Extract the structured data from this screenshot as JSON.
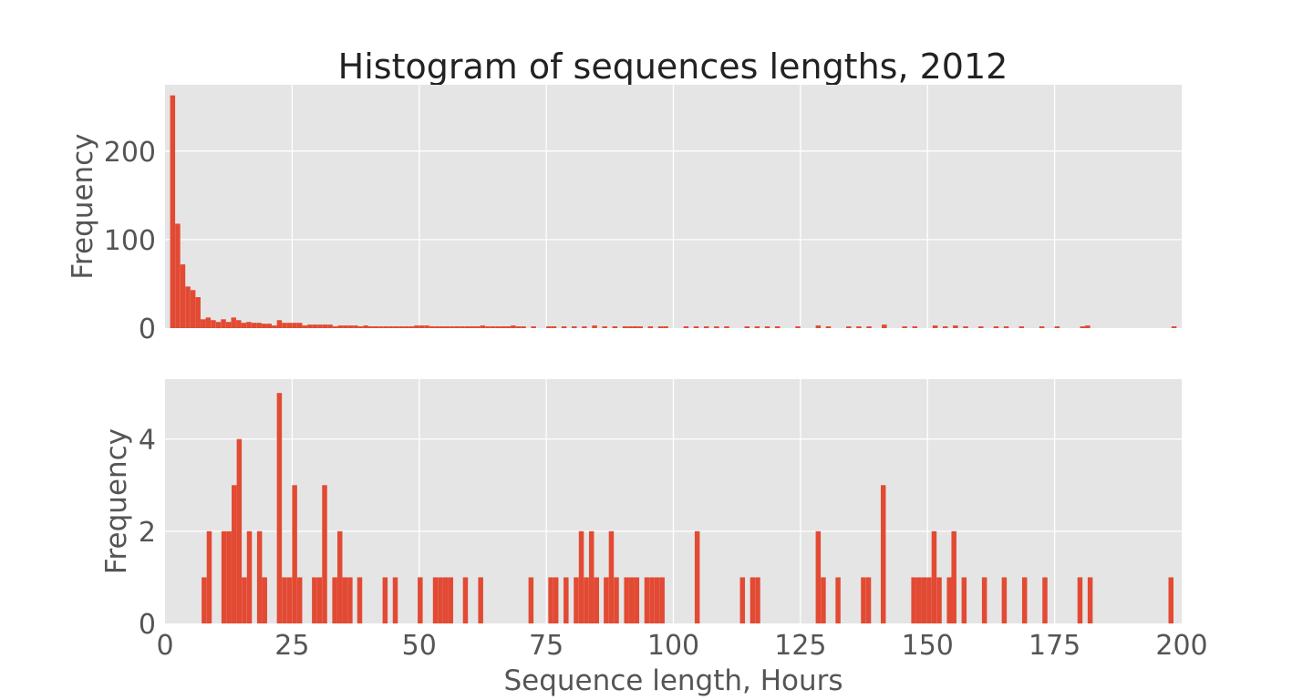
{
  "title": "Histogram of sequences lengths, 2012",
  "colors": {
    "bar": "#E24A33",
    "panel": "#E5E5E5",
    "grid": "#FFFFFF"
  },
  "chart_data": [
    {
      "type": "bar",
      "panel": "top",
      "ylabel": "Frequency",
      "xlabel": "",
      "xlim": [
        0,
        200
      ],
      "ylim": [
        0,
        275
      ],
      "yticks": [
        "0",
        "100",
        "200"
      ],
      "ytick_values": [
        0,
        100,
        200
      ],
      "xticks_shown": false,
      "grid": true,
      "bars": [
        [
          1,
          263
        ],
        [
          2,
          118
        ],
        [
          3,
          72
        ],
        [
          4,
          47
        ],
        [
          5,
          43
        ],
        [
          6,
          35
        ],
        [
          7,
          10
        ],
        [
          8,
          12
        ],
        [
          9,
          9
        ],
        [
          10,
          7
        ],
        [
          11,
          10
        ],
        [
          12,
          7
        ],
        [
          13,
          12
        ],
        [
          14,
          9
        ],
        [
          15,
          6
        ],
        [
          16,
          7
        ],
        [
          17,
          6
        ],
        [
          18,
          6
        ],
        [
          19,
          5
        ],
        [
          20,
          5
        ],
        [
          21,
          3
        ],
        [
          22,
          9
        ],
        [
          23,
          6
        ],
        [
          24,
          6
        ],
        [
          25,
          6
        ],
        [
          26,
          6
        ],
        [
          27,
          3
        ],
        [
          28,
          4
        ],
        [
          29,
          4
        ],
        [
          30,
          4
        ],
        [
          31,
          4
        ],
        [
          32,
          4
        ],
        [
          33,
          2
        ],
        [
          34,
          3
        ],
        [
          35,
          3
        ],
        [
          36,
          3
        ],
        [
          37,
          3
        ],
        [
          38,
          2
        ],
        [
          39,
          3
        ],
        [
          40,
          2
        ],
        [
          41,
          2
        ],
        [
          42,
          2
        ],
        [
          43,
          2
        ],
        [
          44,
          2
        ],
        [
          45,
          2
        ],
        [
          46,
          2
        ],
        [
          47,
          2
        ],
        [
          48,
          2
        ],
        [
          49,
          3
        ],
        [
          50,
          3
        ],
        [
          51,
          3
        ],
        [
          52,
          2
        ],
        [
          53,
          2
        ],
        [
          54,
          2
        ],
        [
          55,
          2
        ],
        [
          56,
          2
        ],
        [
          57,
          2
        ],
        [
          58,
          2
        ],
        [
          59,
          2
        ],
        [
          60,
          2
        ],
        [
          61,
          2
        ],
        [
          62,
          3
        ],
        [
          63,
          2
        ],
        [
          64,
          2
        ],
        [
          65,
          2
        ],
        [
          66,
          2
        ],
        [
          67,
          2
        ],
        [
          68,
          3
        ],
        [
          69,
          2
        ],
        [
          70,
          2
        ],
        [
          72,
          2
        ],
        [
          75,
          2
        ],
        [
          76,
          2
        ],
        [
          78,
          2
        ],
        [
          80,
          2
        ],
        [
          82,
          2
        ],
        [
          84,
          3
        ],
        [
          86,
          2
        ],
        [
          88,
          2
        ],
        [
          90,
          2
        ],
        [
          91,
          2
        ],
        [
          92,
          2
        ],
        [
          93,
          2
        ],
        [
          95,
          2
        ],
        [
          97,
          2
        ],
        [
          98,
          2
        ],
        [
          102,
          2
        ],
        [
          104,
          2
        ],
        [
          106,
          2
        ],
        [
          108,
          2
        ],
        [
          110,
          2
        ],
        [
          114,
          2
        ],
        [
          116,
          2
        ],
        [
          118,
          2
        ],
        [
          120,
          2
        ],
        [
          124,
          2
        ],
        [
          128,
          3
        ],
        [
          130,
          2
        ],
        [
          134,
          2
        ],
        [
          136,
          2
        ],
        [
          138,
          2
        ],
        [
          141,
          4
        ],
        [
          145,
          2
        ],
        [
          147,
          2
        ],
        [
          151,
          3
        ],
        [
          153,
          2
        ],
        [
          155,
          3
        ],
        [
          157,
          2
        ],
        [
          160,
          2
        ],
        [
          163,
          2
        ],
        [
          165,
          2
        ],
        [
          168,
          2
        ],
        [
          172,
          2
        ],
        [
          175,
          2
        ],
        [
          180,
          2
        ],
        [
          181,
          3
        ],
        [
          198,
          2
        ]
      ]
    },
    {
      "type": "bar",
      "panel": "bottom",
      "ylabel": "Frequency",
      "xlabel": "Sequence length, Hours",
      "xlim": [
        0,
        200
      ],
      "ylim": [
        0,
        5.3
      ],
      "yticks": [
        "0",
        "2",
        "4"
      ],
      "ytick_values": [
        0,
        2,
        4
      ],
      "xticks": [
        "0",
        "25",
        "50",
        "75",
        "100",
        "125",
        "150",
        "175",
        "200"
      ],
      "xtick_values": [
        0,
        25,
        50,
        75,
        100,
        125,
        150,
        175,
        200
      ],
      "grid": true,
      "bars": [
        [
          7.2,
          1
        ],
        [
          8.2,
          2
        ],
        [
          11.1,
          2
        ],
        [
          12.1,
          2
        ],
        [
          13.1,
          3
        ],
        [
          14.1,
          4
        ],
        [
          15.1,
          1
        ],
        [
          16.1,
          2
        ],
        [
          18.1,
          2
        ],
        [
          19.1,
          1
        ],
        [
          22.0,
          5
        ],
        [
          23.0,
          1
        ],
        [
          24.0,
          1
        ],
        [
          25.0,
          3
        ],
        [
          26.0,
          1
        ],
        [
          28.9,
          1
        ],
        [
          29.9,
          1
        ],
        [
          30.9,
          3
        ],
        [
          32.9,
          1
        ],
        [
          33.9,
          2
        ],
        [
          34.9,
          1
        ],
        [
          35.9,
          1
        ],
        [
          37.8,
          1
        ],
        [
          42.8,
          1
        ],
        [
          44.8,
          1
        ],
        [
          49.7,
          1
        ],
        [
          52.7,
          1
        ],
        [
          53.7,
          1
        ],
        [
          54.7,
          1
        ],
        [
          55.7,
          1
        ],
        [
          58.6,
          1
        ],
        [
          61.6,
          1
        ],
        [
          71.5,
          1
        ],
        [
          75.4,
          1
        ],
        [
          76.4,
          1
        ],
        [
          78.4,
          1
        ],
        [
          80.4,
          1
        ],
        [
          81.4,
          2
        ],
        [
          82.4,
          1
        ],
        [
          83.4,
          2
        ],
        [
          84.4,
          1
        ],
        [
          86.3,
          1
        ],
        [
          87.3,
          2
        ],
        [
          88.3,
          1
        ],
        [
          90.3,
          1
        ],
        [
          91.3,
          1
        ],
        [
          92.3,
          1
        ],
        [
          94.3,
          1
        ],
        [
          95.3,
          1
        ],
        [
          96.3,
          1
        ],
        [
          97.3,
          1
        ],
        [
          104.2,
          2
        ],
        [
          113.1,
          1
        ],
        [
          115.1,
          1
        ],
        [
          116.1,
          1
        ],
        [
          128.0,
          2
        ],
        [
          129.0,
          1
        ],
        [
          131.9,
          1
        ],
        [
          136.9,
          1
        ],
        [
          137.9,
          1
        ],
        [
          140.8,
          3
        ],
        [
          146.8,
          1
        ],
        [
          147.8,
          1
        ],
        [
          148.8,
          1
        ],
        [
          149.8,
          1
        ],
        [
          150.8,
          2
        ],
        [
          151.8,
          1
        ],
        [
          153.8,
          1
        ],
        [
          154.7,
          2
        ],
        [
          156.7,
          1
        ],
        [
          160.7,
          1
        ],
        [
          164.6,
          1
        ],
        [
          168.6,
          1
        ],
        [
          172.6,
          1
        ],
        [
          179.5,
          1
        ],
        [
          181.5,
          1
        ],
        [
          197.4,
          1
        ]
      ]
    }
  ]
}
